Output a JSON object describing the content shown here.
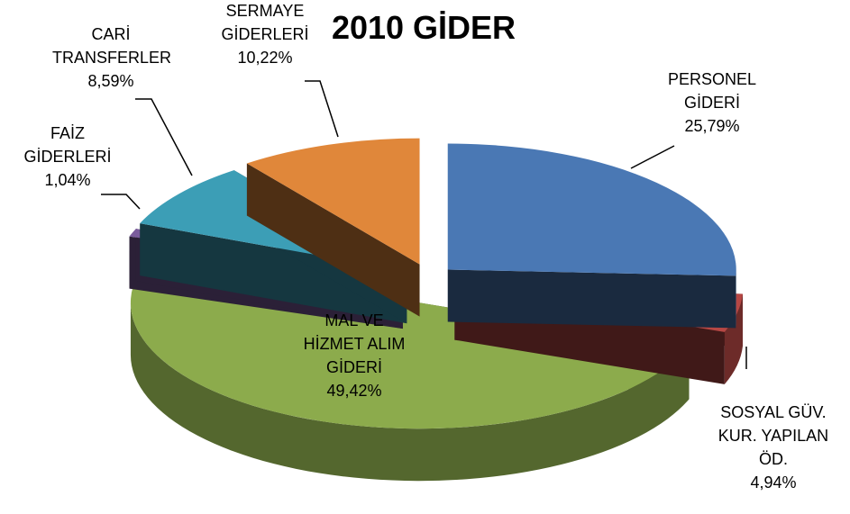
{
  "chart_data": {
    "type": "pie",
    "title": "2010 GİDER",
    "categories": [
      "PERSONEL GİDERİ",
      "SOSYAL GÜV. KUR. YAPILAN ÖD.",
      "MAL VE HİZMET ALIM GİDERİ",
      "FAİZ GİDERLERİ",
      "CARİ TRANSFERLER",
      "SERMAYE GİDERLERİ"
    ],
    "values": [
      25.79,
      4.94,
      49.42,
      1.04,
      8.59,
      10.22
    ],
    "value_labels": [
      "25,79%",
      "4,94%",
      "49,42%",
      "1,04%",
      "8,59%",
      "10,22%"
    ],
    "colors": [
      "#4a78b4",
      "#b64744",
      "#8cab4c",
      "#7a5c9c",
      "#3c9eb6",
      "#e0873a"
    ]
  }
}
